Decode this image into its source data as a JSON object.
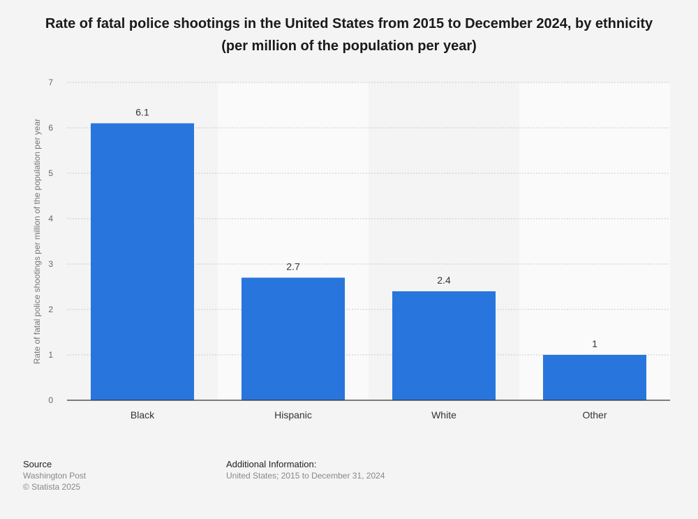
{
  "chart_data": {
    "type": "bar",
    "title": "Rate of fatal police shootings in the United States from 2015 to December 2024, by ethnicity (per million of the population per year)",
    "ylabel": "Rate of fatal police shootings per million of the population per year",
    "xlabel": "",
    "categories": [
      "Black",
      "Hispanic",
      "White",
      "Other"
    ],
    "values": [
      6.1,
      2.7,
      2.4,
      1
    ],
    "value_labels": [
      "6.1",
      "2.7",
      "2.4",
      "1"
    ],
    "ylim": [
      0,
      7
    ],
    "yticks": [
      0,
      1,
      2,
      3,
      4,
      5,
      6,
      7
    ],
    "grid": true,
    "bar_color": "#2876dd"
  },
  "footer": {
    "source_heading": "Source",
    "source_lines": [
      "Washington Post",
      "© Statista 2025"
    ],
    "info_heading": "Additional Information:",
    "info_lines": [
      "United States; 2015 to December 31, 2024"
    ]
  }
}
